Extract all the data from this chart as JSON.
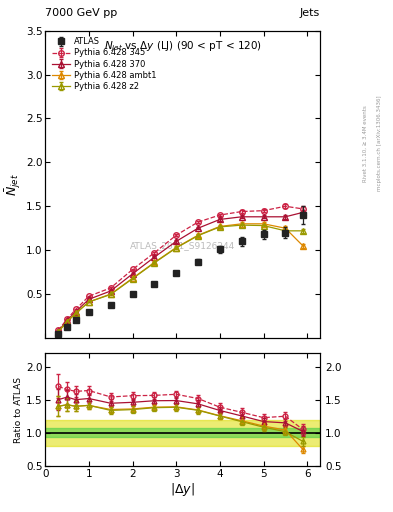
{
  "title_top_left": "7000 GeV pp",
  "title_top_right": "Jets",
  "plot_title": "$N_{jet}$ vs $\\Delta y$ (LJ) (90 < pT < 120)",
  "watermark": "ATLAS_2011_S9126244",
  "right_label1": "Rivet 3.1.10, ≥ 3.4M events",
  "right_label2": "mcplots.cern.ch [arXiv:1306.3436]",
  "ylabel_main": "$\\bar{N}_{jet}$",
  "ylabel_ratio": "Ratio to ATLAS",
  "xlabel": "$|\\Delta y|$",
  "xlim": [
    0,
    6.3
  ],
  "ylim_main": [
    0.0,
    3.5
  ],
  "ylim_ratio": [
    0.5,
    2.2
  ],
  "yticks_main": [
    0.5,
    1.0,
    1.5,
    2.0,
    2.5,
    3.0,
    3.5
  ],
  "yticks_ratio": [
    0.5,
    1.0,
    1.5,
    2.0
  ],
  "atlas_x": [
    0.3,
    0.5,
    0.7,
    1.0,
    1.5,
    2.0,
    2.5,
    3.0,
    3.5,
    4.0,
    4.5,
    5.0,
    5.5,
    5.9
  ],
  "atlas_y": [
    0.05,
    0.13,
    0.2,
    0.29,
    0.37,
    0.5,
    0.62,
    0.74,
    0.87,
    1.01,
    1.1,
    1.18,
    1.2,
    1.4
  ],
  "atlas_yerr": [
    0.005,
    0.008,
    0.01,
    0.012,
    0.015,
    0.018,
    0.02,
    0.025,
    0.03,
    0.04,
    0.05,
    0.055,
    0.06,
    0.1
  ],
  "p345_x": [
    0.3,
    0.5,
    0.7,
    1.0,
    1.5,
    2.0,
    2.5,
    3.0,
    3.5,
    4.0,
    4.5,
    5.0,
    5.5,
    5.9
  ],
  "p345_y": [
    0.085,
    0.215,
    0.325,
    0.475,
    0.57,
    0.78,
    0.97,
    1.17,
    1.32,
    1.4,
    1.44,
    1.45,
    1.5,
    1.47
  ],
  "p345_yerr": [
    0.003,
    0.005,
    0.006,
    0.007,
    0.008,
    0.01,
    0.012,
    0.013,
    0.015,
    0.016,
    0.017,
    0.019,
    0.022,
    0.03
  ],
  "p370_x": [
    0.3,
    0.5,
    0.7,
    1.0,
    1.5,
    2.0,
    2.5,
    3.0,
    3.5,
    4.0,
    4.5,
    5.0,
    5.5,
    5.9
  ],
  "p370_y": [
    0.075,
    0.2,
    0.3,
    0.44,
    0.535,
    0.73,
    0.92,
    1.1,
    1.25,
    1.35,
    1.38,
    1.38,
    1.38,
    1.43
  ],
  "p370_yerr": [
    0.003,
    0.005,
    0.006,
    0.006,
    0.008,
    0.01,
    0.011,
    0.013,
    0.014,
    0.015,
    0.016,
    0.018,
    0.02,
    0.028
  ],
  "pambt1_x": [
    0.3,
    0.5,
    0.7,
    1.0,
    1.5,
    2.0,
    2.5,
    3.0,
    3.5,
    4.0,
    4.5,
    5.0,
    5.5,
    5.9
  ],
  "pambt1_y": [
    0.07,
    0.185,
    0.28,
    0.41,
    0.5,
    0.68,
    0.86,
    1.03,
    1.17,
    1.27,
    1.3,
    1.3,
    1.25,
    1.05
  ],
  "pambt1_yerr": [
    0.003,
    0.005,
    0.006,
    0.006,
    0.008,
    0.009,
    0.011,
    0.012,
    0.014,
    0.015,
    0.016,
    0.018,
    0.02,
    0.025
  ],
  "pz2_x": [
    0.3,
    0.5,
    0.7,
    1.0,
    1.5,
    2.0,
    2.5,
    3.0,
    3.5,
    4.0,
    4.5,
    5.0,
    5.5,
    5.9
  ],
  "pz2_y": [
    0.07,
    0.185,
    0.28,
    0.41,
    0.495,
    0.675,
    0.855,
    1.025,
    1.165,
    1.265,
    1.285,
    1.28,
    1.22,
    1.22
  ],
  "pz2_yerr": [
    0.003,
    0.005,
    0.006,
    0.006,
    0.008,
    0.009,
    0.011,
    0.012,
    0.014,
    0.015,
    0.016,
    0.018,
    0.02,
    0.025
  ],
  "color_atlas": "#222222",
  "color_p345": "#cc2244",
  "color_p370": "#aa1133",
  "color_pambt1": "#dd8800",
  "color_pz2": "#999900",
  "atlas_band_inner_color": "#44cc44",
  "atlas_band_inner_alpha": 0.55,
  "atlas_band_outer_color": "#dddd00",
  "atlas_band_outer_alpha": 0.55,
  "atlas_band_inner_low": 0.93,
  "atlas_band_inner_high": 1.07,
  "atlas_band_outer_low": 0.8,
  "atlas_band_outer_high": 1.2
}
